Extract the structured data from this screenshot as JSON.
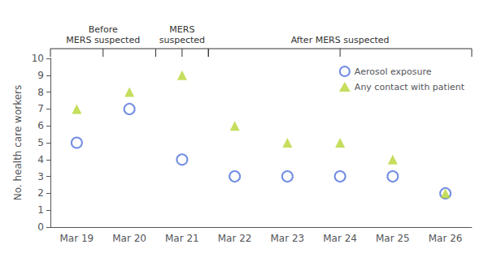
{
  "chart_data": {
    "type": "scatter",
    "categories": [
      "Mar 19",
      "Mar 20",
      "Mar 21",
      "Mar 22",
      "Mar 23",
      "Mar 24",
      "Mar 25",
      "Mar 26"
    ],
    "series": [
      {
        "name": "Aerosol exposure",
        "values": [
          5,
          7,
          4,
          3,
          3,
          3,
          3,
          2
        ],
        "marker": "open circle"
      },
      {
        "name": "Any contact with patient",
        "values": [
          7,
          8,
          9,
          6,
          5,
          5,
          4,
          2
        ],
        "marker": "triangle"
      }
    ],
    "ylabel": "No. health care workers",
    "ylim": [
      0,
      10
    ],
    "yticks": [
      0,
      1,
      2,
      3,
      4,
      5,
      6,
      7,
      8,
      9,
      10
    ],
    "grid": false,
    "legend": "upper right",
    "annotations": [
      {
        "text": "Before\nMERS suspected",
        "from": "Mar 19",
        "to": "Mar 20"
      },
      {
        "text": "MERS\nsuspected",
        "from": "Mar 21",
        "to": "Mar 21"
      },
      {
        "text": "After MERS suspected",
        "from": "Mar 22",
        "to": "Mar 26"
      }
    ]
  }
}
